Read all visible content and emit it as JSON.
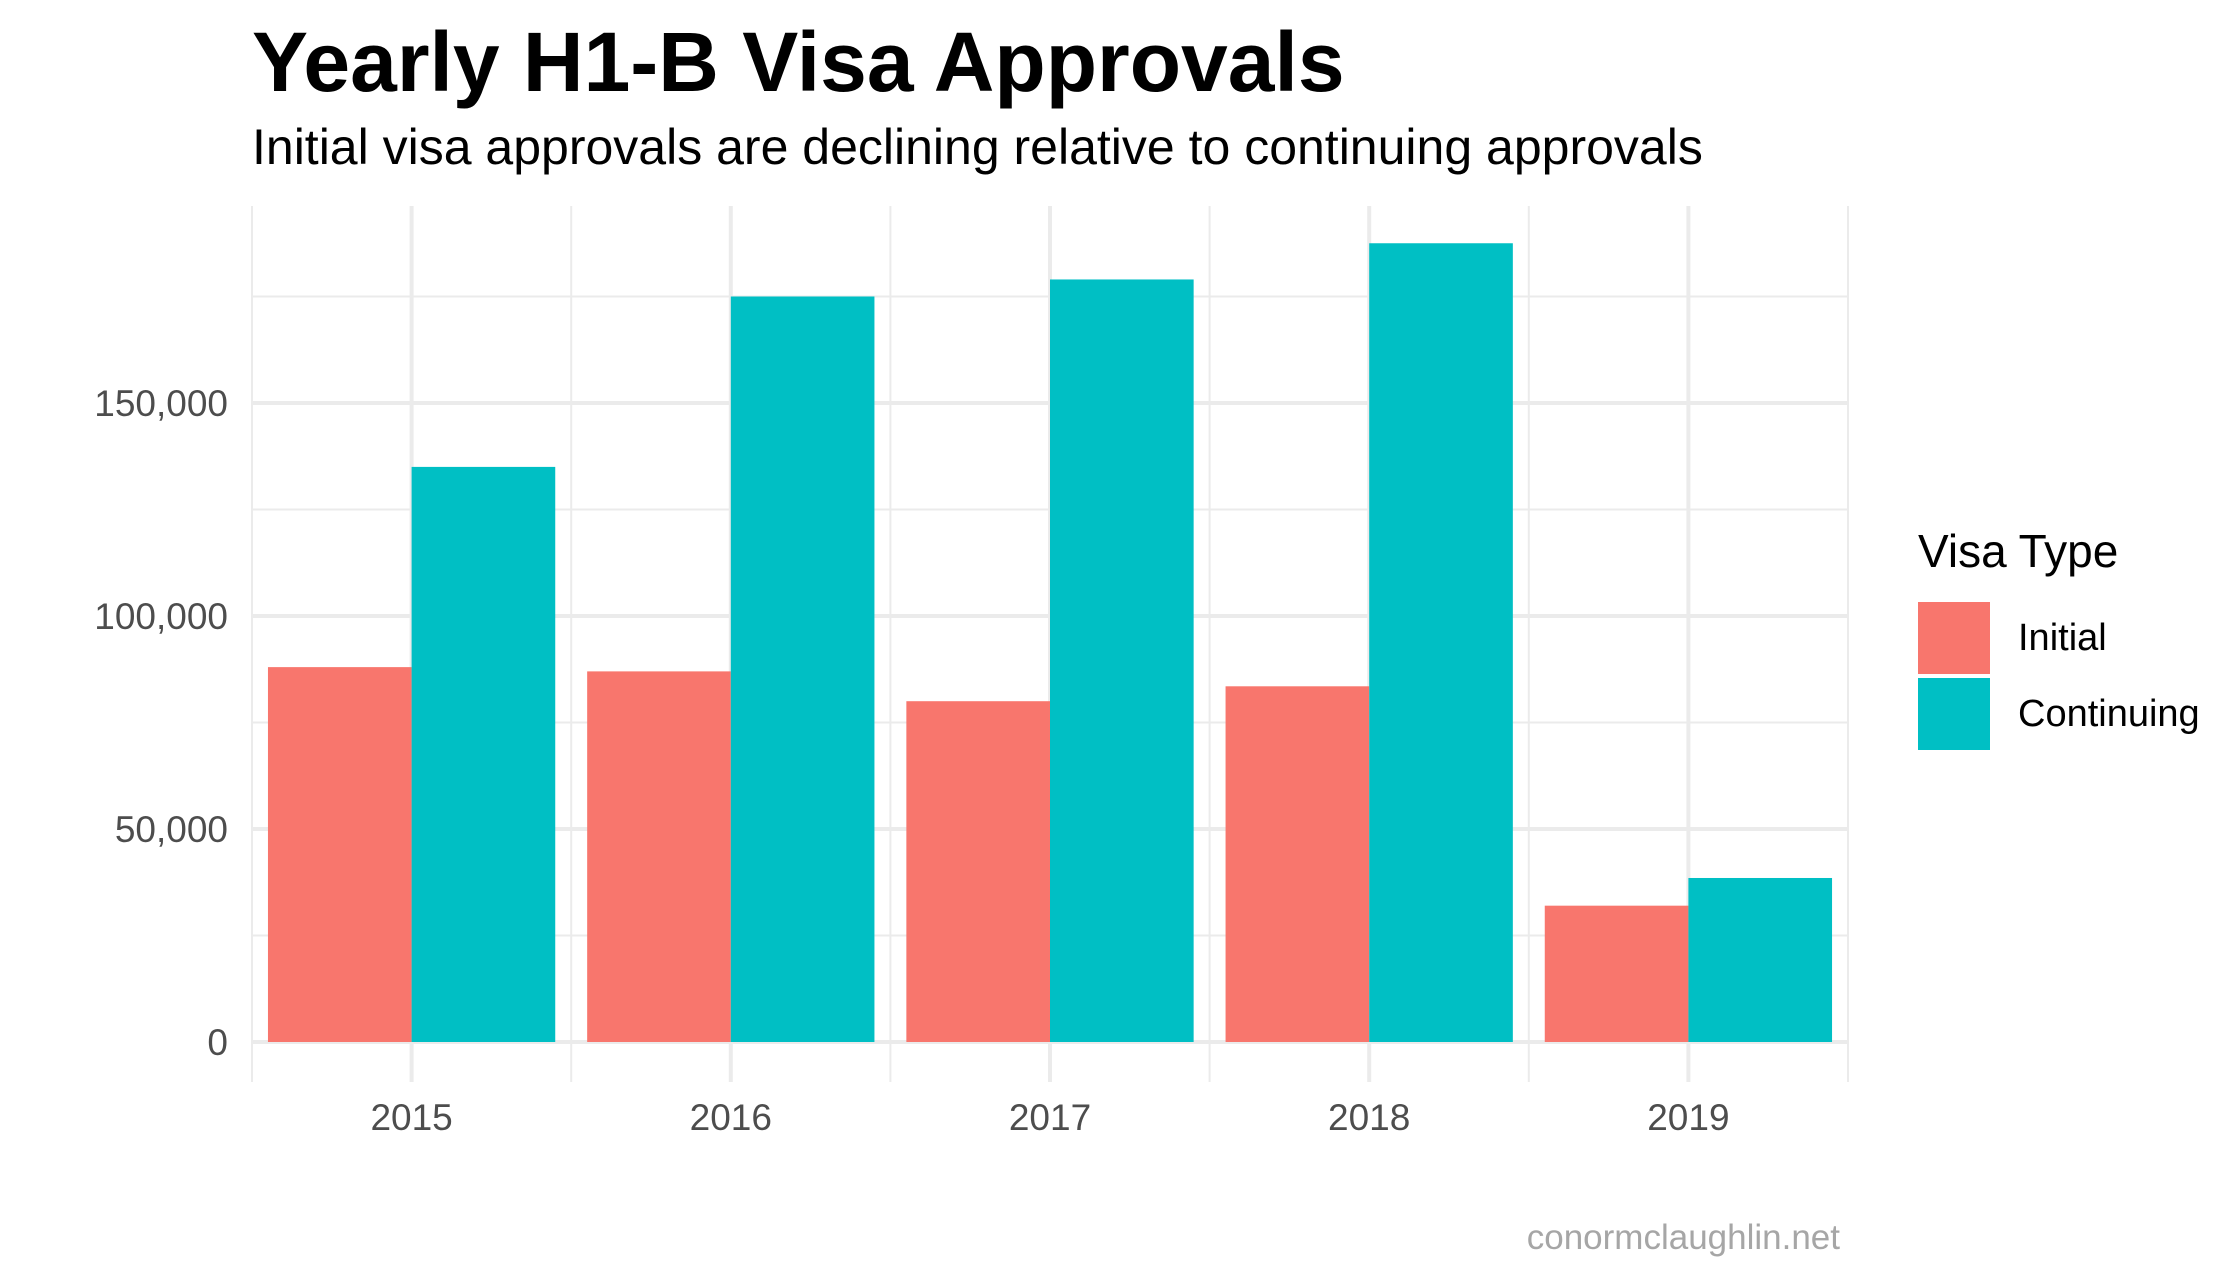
{
  "chart_data": {
    "type": "bar",
    "title": "Yearly H1-B Visa Approvals",
    "subtitle": "Initial visa approvals are declining relative to continuing approvals",
    "xlabel": "",
    "ylabel": "",
    "categories": [
      "2015",
      "2016",
      "2017",
      "2018",
      "2019"
    ],
    "series": [
      {
        "name": "Initial",
        "values": [
          88000,
          87000,
          80000,
          83500,
          32000
        ],
        "color": "#F8766D"
      },
      {
        "name": "Continuing",
        "values": [
          135000,
          175000,
          179000,
          187500,
          38500
        ],
        "color": "#00BFC4"
      }
    ],
    "ylim": [
      0,
      197000
    ],
    "yticks": [
      0,
      50000,
      100000,
      150000
    ],
    "ytick_labels": [
      "0",
      "50,000",
      "100,000",
      "150,000"
    ],
    "grid": true,
    "legend": {
      "title": "Visa Type",
      "position": "right"
    },
    "caption": "conormclaughlin.net"
  }
}
